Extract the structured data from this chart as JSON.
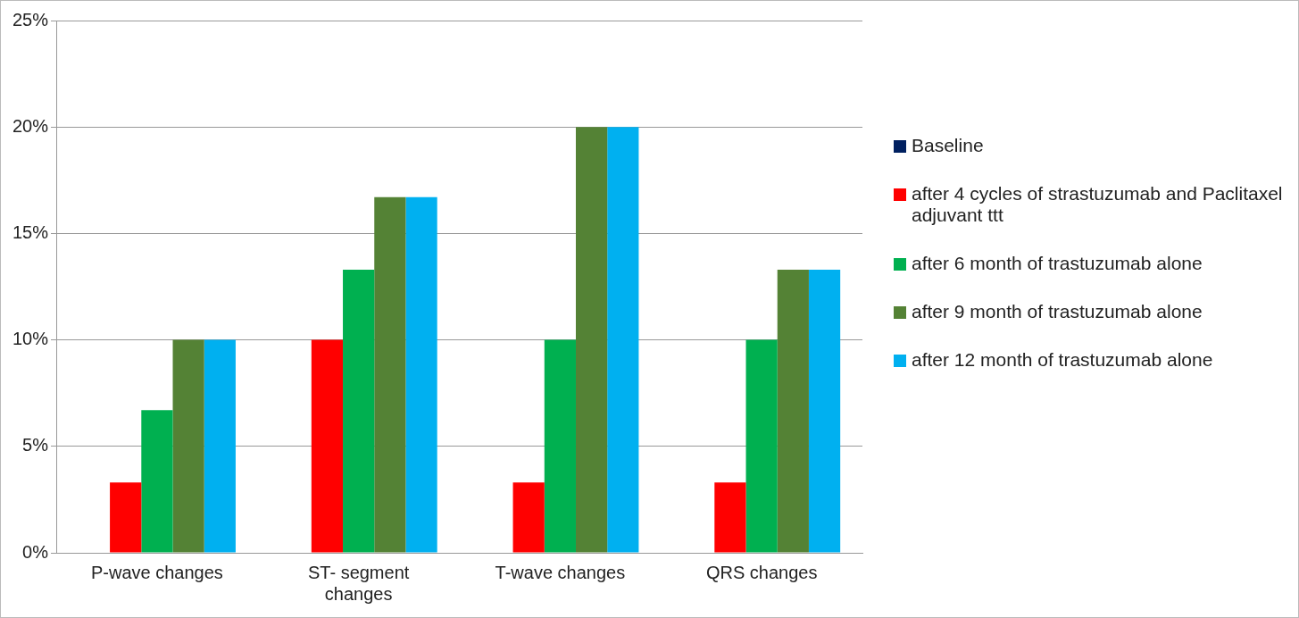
{
  "chart_data": {
    "type": "bar",
    "categories": [
      "P-wave changes",
      "ST- segment changes",
      "T-wave changes",
      "QRS changes"
    ],
    "series": [
      {
        "name": "Baseline",
        "color": "#002060",
        "values": [
          0,
          0,
          0,
          0
        ]
      },
      {
        "name": " after 4 cycles of strastuzumab and Paclitaxel adjuvant ttt",
        "color": "#ff0000",
        "values": [
          3.3,
          10,
          3.3,
          3.3
        ]
      },
      {
        "name": "after 6 month of trastuzumab alone",
        "color": "#00b050",
        "values": [
          6.7,
          13.3,
          10,
          10
        ]
      },
      {
        "name": "after 9 month of trastuzumab alone",
        "color": "#548235",
        "values": [
          10,
          16.7,
          20,
          13.3
        ]
      },
      {
        "name": "after 12 month of trastuzumab alone",
        "color": "#00b0f0",
        "values": [
          10,
          16.7,
          20,
          13.3
        ]
      }
    ],
    "ylim": [
      0,
      25
    ],
    "yticks": [
      {
        "value": 0,
        "label": "0%"
      },
      {
        "value": 5,
        "label": "5%"
      },
      {
        "value": 10,
        "label": "10%"
      },
      {
        "value": 15,
        "label": "15%"
      },
      {
        "value": 20,
        "label": "20%"
      },
      {
        "value": 25,
        "label": "25%"
      }
    ],
    "grid": "y",
    "legend": "right"
  }
}
